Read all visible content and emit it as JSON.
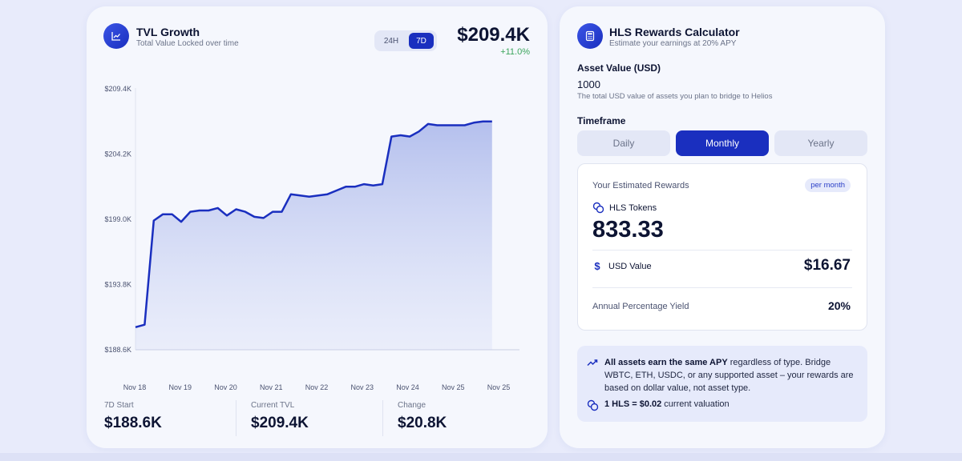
{
  "colors": {
    "accent": "#1a2fbf",
    "line": "#1a2fbf",
    "positive": "#3ba55c",
    "page_bg": "#e8ebfb",
    "card_bg": "#f5f7fd"
  },
  "tvl": {
    "icon": "chart-line-icon",
    "title": "TVL Growth",
    "subtitle": "Total Value Locked over time",
    "range_options": [
      "24H",
      "7D"
    ],
    "range_selected": "7D",
    "current_value": "$209.4K",
    "change_percent": "+11.0%",
    "stats": [
      {
        "label": "7D Start",
        "value": "$188.6K"
      },
      {
        "label": "Current TVL",
        "value": "$209.4K"
      },
      {
        "label": "Change",
        "value": "$20.8K"
      }
    ]
  },
  "chart_data": {
    "type": "area",
    "y_tick_labels": [
      "$209.4K",
      "$204.2K",
      "$199.0K",
      "$193.8K",
      "$188.6K"
    ],
    "y_ticks": [
      209400,
      204200,
      199000,
      193800,
      188600
    ],
    "ylim": [
      188600,
      209400
    ],
    "x_tick_labels": [
      "Nov 18",
      "Nov 19",
      "Nov 20",
      "Nov 21",
      "Nov 22",
      "Nov 23",
      "Nov 24",
      "Nov 25",
      "Nov 25"
    ],
    "x_range": [
      0,
      42
    ],
    "grid": false,
    "series": [
      {
        "values": [
          [
            0,
            190400
          ],
          [
            1,
            190600
          ],
          [
            2,
            198900
          ],
          [
            3,
            199400
          ],
          [
            4,
            199400
          ],
          [
            5,
            198800
          ],
          [
            6,
            199600
          ],
          [
            7,
            199700
          ],
          [
            8,
            199700
          ],
          [
            9,
            199900
          ],
          [
            10,
            199300
          ],
          [
            11,
            199800
          ],
          [
            12,
            199600
          ],
          [
            13,
            199200
          ],
          [
            14,
            199100
          ],
          [
            15,
            199600
          ],
          [
            16,
            199600
          ],
          [
            17,
            201000
          ],
          [
            18,
            200900
          ],
          [
            19,
            200800
          ],
          [
            20,
            200900
          ],
          [
            21,
            201000
          ],
          [
            22,
            201300
          ],
          [
            23,
            201600
          ],
          [
            24,
            201600
          ],
          [
            25,
            201800
          ],
          [
            26,
            201700
          ],
          [
            27,
            201800
          ],
          [
            28,
            205600
          ],
          [
            29,
            205700
          ],
          [
            30,
            205600
          ],
          [
            31,
            206000
          ],
          [
            32,
            206600
          ],
          [
            33,
            206500
          ],
          [
            34,
            206500
          ],
          [
            35,
            206500
          ],
          [
            36,
            206500
          ],
          [
            37,
            206700
          ],
          [
            38,
            206800
          ],
          [
            39,
            206800
          ]
        ]
      }
    ]
  },
  "calculator": {
    "icon": "calculator-icon",
    "title": "HLS Rewards Calculator",
    "subtitle": "Estimate your earnings at 20% APY",
    "asset_label": "Asset Value (USD)",
    "asset_value": "1000",
    "asset_hint": "The total USD value of assets you plan to bridge to Helios",
    "timeframe_label": "Timeframe",
    "timeframes": [
      "Daily",
      "Monthly",
      "Yearly"
    ],
    "timeframe_selected": "Monthly",
    "rewards": {
      "label": "Your Estimated Rewards",
      "badge": "per month",
      "token_label": "HLS Tokens",
      "token_amount": "833.33",
      "usd_label": "USD Value",
      "usd_value": "$16.67",
      "apy_label": "Annual Percentage Yield",
      "apy_value": "20%"
    },
    "info": {
      "bold_lead": "All assets earn the same APY",
      "text": " regardless of type. Bridge WBTC, ETH, USDC, or any supported asset – your rewards are based on dollar value, not asset type.",
      "price_bold": "1 HLS = $0.02",
      "price_text": " current valuation"
    }
  }
}
